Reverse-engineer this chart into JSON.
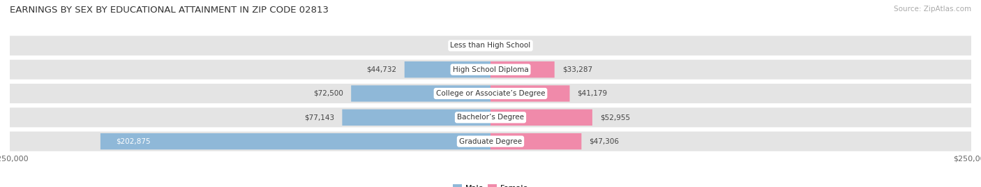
{
  "title": "EARNINGS BY SEX BY EDUCATIONAL ATTAINMENT IN ZIP CODE 02813",
  "source": "Source: ZipAtlas.com",
  "categories": [
    "Less than High School",
    "High School Diploma",
    "College or Associate’s Degree",
    "Bachelor’s Degree",
    "Graduate Degree"
  ],
  "male_values": [
    0,
    44732,
    72500,
    77143,
    202875
  ],
  "female_values": [
    0,
    33287,
    41179,
    52955,
    47306
  ],
  "male_color": "#8fb8d8",
  "female_color": "#f08aaa",
  "max_value": 250000,
  "bar_row_bg": "#e4e4e4",
  "bg_color": "#ffffff",
  "title_fontsize": 9.5,
  "source_fontsize": 7.5,
  "axis_label_fontsize": 8,
  "bar_label_fontsize": 7.5,
  "category_fontsize": 7.5
}
